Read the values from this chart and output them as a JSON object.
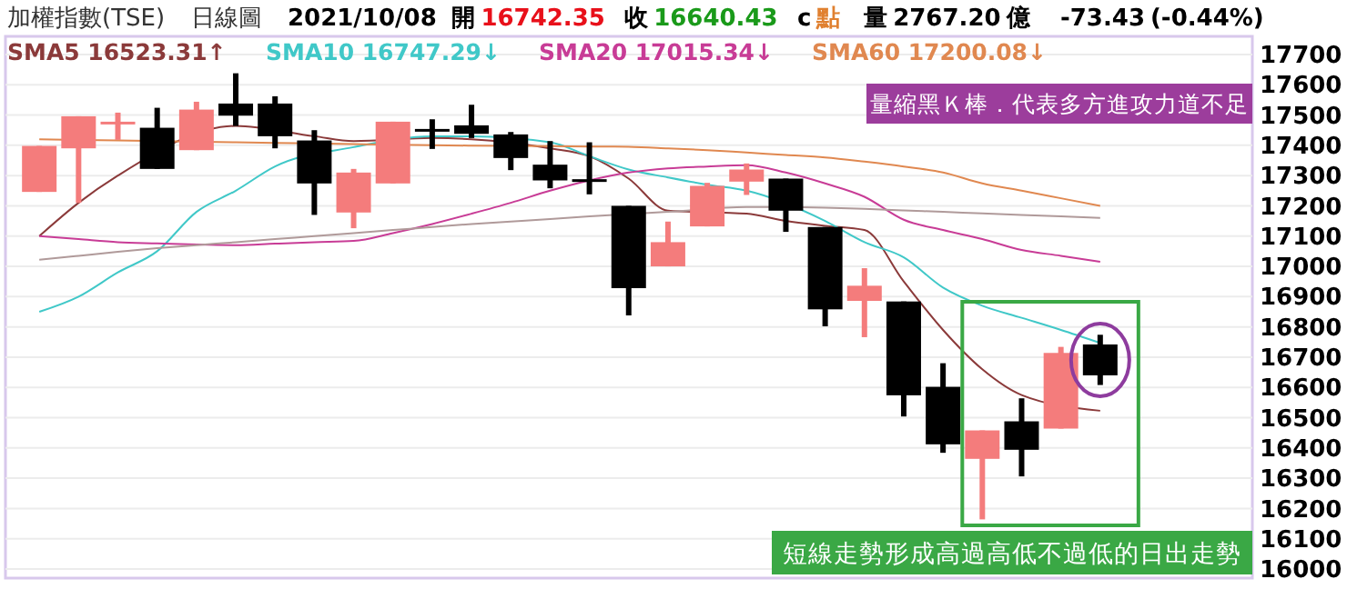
{
  "chart_data": {
    "type": "candlestick",
    "title": "加權指數(TSE)",
    "subtitle": "日線圖",
    "annotations": [
      "2021/10/08",
      "開 16742.35",
      "收 16640.43",
      "c 點",
      "量 2767.20 億",
      "-73.43 (-0.44%)",
      "量縮黑Ｋ棒．代表多方進攻力道不足",
      "短線走勢形成高過高低不過低的日出走勢"
    ],
    "categories": [
      null,
      null,
      null,
      null,
      null,
      null,
      null,
      null,
      null,
      null,
      null,
      null,
      null,
      null,
      null,
      null,
      null,
      null,
      null,
      null,
      null,
      null,
      null,
      null,
      null,
      null,
      null,
      null
    ],
    "ohlc": [
      [
        17246,
        17398,
        17246,
        17398
      ],
      [
        17390,
        17496,
        17210,
        17496
      ],
      [
        17470,
        17508,
        17418,
        17478
      ],
      [
        17458,
        17524,
        17322,
        17322
      ],
      [
        17384,
        17544,
        17384,
        17518
      ],
      [
        17538,
        17638,
        17464,
        17498
      ],
      [
        17538,
        17562,
        17390,
        17430
      ],
      [
        17416,
        17450,
        17170,
        17274
      ],
      [
        17178,
        17322,
        17126,
        17310
      ],
      [
        17274,
        17478,
        17274,
        17478
      ],
      [
        17454,
        17486,
        17388,
        17450
      ],
      [
        17466,
        17534,
        17424,
        17438
      ],
      [
        17436,
        17444,
        17318,
        17358
      ],
      [
        17336,
        17414,
        17258,
        17284
      ],
      [
        17288,
        17410,
        17238,
        17282
      ],
      [
        17200,
        17200,
        16838,
        16928
      ],
      [
        17000,
        17148,
        17000,
        17080
      ],
      [
        17132,
        17276,
        17132,
        17266
      ],
      [
        17280,
        17340,
        17236,
        17320
      ],
      [
        17290,
        17290,
        17114,
        17184
      ],
      [
        17130,
        17130,
        16802,
        16858
      ],
      [
        16886,
        16994,
        16766,
        16936
      ],
      [
        16884,
        16884,
        16504,
        16574
      ],
      [
        16602,
        16680,
        16384,
        16412
      ],
      [
        16364,
        16458,
        16164,
        16458
      ],
      [
        16488,
        16564,
        16306,
        16394
      ],
      [
        16464,
        16734,
        16464,
        16714
      ],
      [
        16742,
        16774,
        16608,
        16640
      ]
    ],
    "colors": [
      "#f47c7c",
      "#f47c7c",
      "#f47c7c",
      "#000000",
      "#f47c7c",
      "#000000",
      "#000000",
      "#000000",
      "#f47c7c",
      "#f47c7c",
      "#000000",
      "#000000",
      "#000000",
      "#000000",
      "#000000",
      "#000000",
      "#f47c7c",
      "#f47c7c",
      "#f47c7c",
      "#000000",
      "#000000",
      "#f47c7c",
      "#000000",
      "#000000",
      "#f47c7c",
      "#000000",
      "#f47c7c",
      "#000000"
    ],
    "series": [
      {
        "name": "SMA5 16523.31↑",
        "type": "line",
        "color": "#8b3a3a",
        "values": [
          17100,
          17210,
          17300,
          null,
          null,
          17464,
          null,
          17430,
          17414,
          null,
          17424,
          17420,
          null,
          17390,
          17364,
          17290,
          17184,
          null,
          17174,
          17150,
          17134,
          17120,
          16950,
          16790,
          16660,
          16575,
          null,
          16523
        ]
      },
      {
        "name": "SMA10 16747.29↓",
        "type": "line",
        "color": "#40c8c8",
        "values": [
          16850,
          16900,
          16980,
          17050,
          17180,
          17250,
          17330,
          null,
          17394,
          null,
          17430,
          17430,
          null,
          17410,
          17364,
          17320,
          17294,
          17270,
          17250,
          null,
          17150,
          17080,
          17030,
          16930,
          16870,
          16830,
          16790,
          16747
        ]
      },
      {
        "name": "SMA20 17015.34↓",
        "type": "line",
        "color": "#c83c96",
        "values": [
          17100,
          17090,
          17080,
          17076,
          17072,
          17070,
          17075,
          17080,
          17084,
          17110,
          17140,
          17174,
          17210,
          17250,
          17284,
          17310,
          17324,
          17330,
          17334,
          17310,
          17274,
          17230,
          17154,
          17120,
          17090,
          17054,
          17035,
          17015
        ]
      },
      {
        "name": "SMA60 17200.08↓",
        "type": "line",
        "color": "#e08850",
        "values": [
          17420,
          null,
          17416,
          null,
          null,
          17410,
          17408,
          17406,
          17404,
          null,
          17400,
          17399,
          null,
          17397,
          17396,
          17395,
          17390,
          17384,
          17376,
          17368,
          17360,
          17346,
          17330,
          17310,
          17274,
          17250,
          17225,
          17200
        ]
      },
      {
        "type": "line",
        "color": "#b09a9a",
        "values": [
          17022,
          17035,
          17048,
          17060,
          17070,
          17080,
          17090,
          17100,
          17110,
          17120,
          17130,
          17140,
          17148,
          17156,
          17165,
          null,
          17180,
          null,
          17196,
          17196,
          17194,
          17190,
          17185,
          17180,
          17175,
          17170,
          17165,
          17160
        ]
      }
    ],
    "ylim": [
      15970,
      17760
    ],
    "yticks": [
      17700,
      17600,
      17500,
      17400,
      17300,
      17200,
      17100,
      17000,
      16900,
      16800,
      16700,
      16600,
      16500,
      16400,
      16300,
      16200,
      16100,
      16000
    ],
    "grid": "y"
  }
}
